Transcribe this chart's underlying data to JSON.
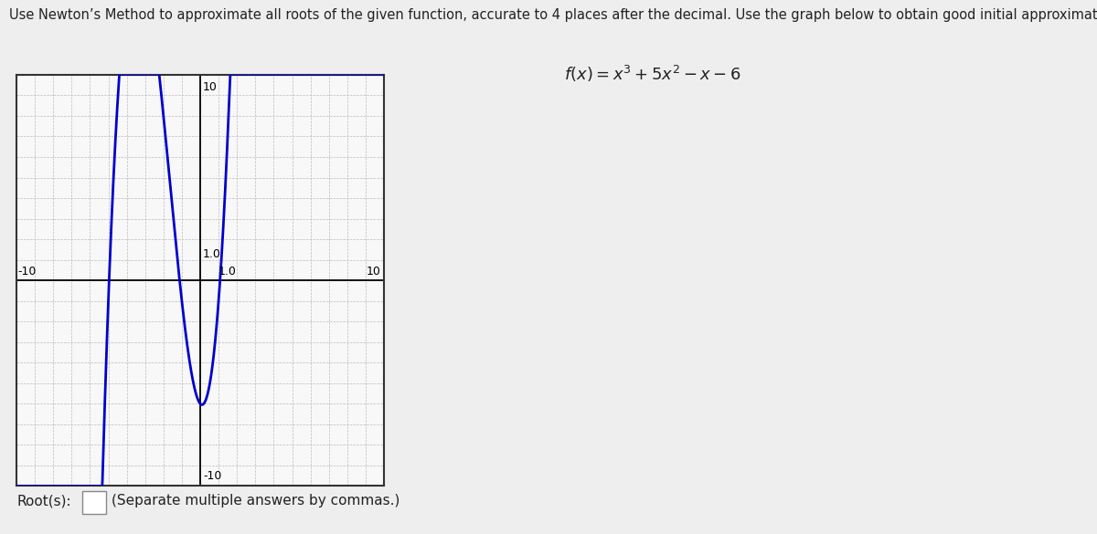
{
  "title_text": "Use Newton’s Method to approximate all roots of the given function, accurate to 4 places after the decimal. Use the graph below to obtain good initial approximations.",
  "formula_text": "$f(x) = x^3 + 5x^2 - x - 6$",
  "roots_label": "Root(s):",
  "roots_hint": "(Separate multiple answers by commas.)",
  "xmin": -10,
  "xmax": 10,
  "ymin": -10,
  "ymax": 10,
  "curve_color": "#0000cc",
  "curve_linewidth": 2.0,
  "background_color": "#eeeeee",
  "plot_bg_color": "#f8f8f8",
  "grid_color": "#bbbbbb",
  "axis_color": "#000000",
  "label_fontsize": 9,
  "title_fontsize": 10.5,
  "formula_fontsize": 13
}
